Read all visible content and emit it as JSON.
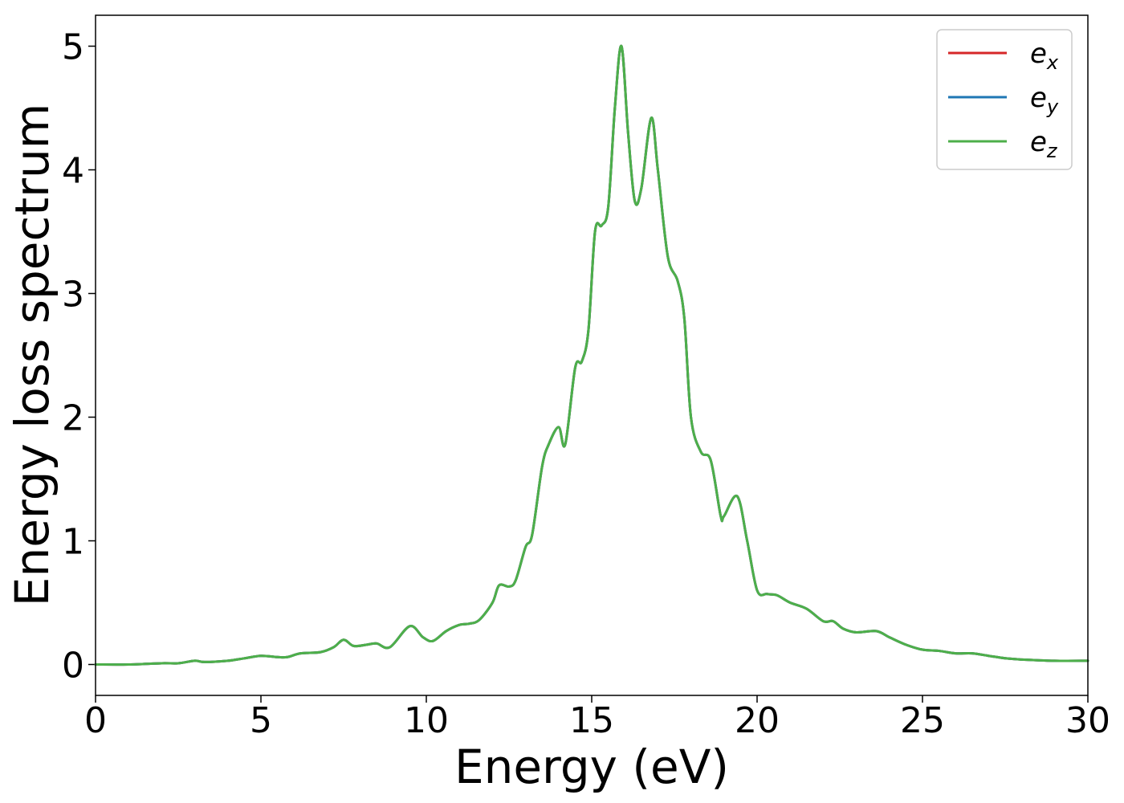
{
  "chart_data": {
    "type": "line",
    "title": "",
    "xlabel": "Energy (eV)",
    "ylabel": "Energy loss spectrum",
    "xlim": [
      0,
      30
    ],
    "ylim": [
      -0.25,
      5.25
    ],
    "xticks": [
      0,
      5,
      10,
      15,
      20,
      25,
      30
    ],
    "xtick_labels": [
      "0",
      "5",
      "10",
      "15",
      "20",
      "25",
      "30"
    ],
    "yticks": [
      0,
      1,
      2,
      3,
      4,
      5
    ],
    "ytick_labels": [
      "0",
      "1",
      "2",
      "3",
      "4",
      "5"
    ],
    "grid": false,
    "legend_position": "top-right",
    "x": [
      0,
      1,
      2,
      2.5,
      3,
      3.3,
      4,
      4.5,
      5,
      5.5,
      5.8,
      6.2,
      6.8,
      7.2,
      7.5,
      7.8,
      8.2,
      8.5,
      8.9,
      9.5,
      9.9,
      10.2,
      10.6,
      11,
      11.3,
      11.6,
      12,
      12.2,
      12.5,
      12.7,
      13,
      13.2,
      13.5,
      13.7,
      14,
      14.2,
      14.5,
      14.7,
      14.9,
      15.1,
      15.3,
      15.5,
      15.7,
      15.9,
      16.1,
      16.3,
      16.5,
      16.8,
      17,
      17.3,
      17.6,
      17.8,
      18,
      18.3,
      18.6,
      18.9,
      19,
      19.4,
      19.7,
      20,
      20.3,
      20.6,
      21,
      21.5,
      22,
      22.3,
      22.6,
      23,
      23.6,
      24,
      24.5,
      25,
      25.5,
      26,
      26.5,
      27,
      27.5,
      28,
      29,
      30
    ],
    "series": [
      {
        "name": "e_x",
        "label_base": "e",
        "label_sub": "x",
        "color": "#d62728",
        "values": [
          0,
          0,
          0.01,
          0.01,
          0.03,
          0.02,
          0.03,
          0.05,
          0.07,
          0.06,
          0.06,
          0.09,
          0.1,
          0.14,
          0.2,
          0.15,
          0.16,
          0.17,
          0.14,
          0.31,
          0.22,
          0.19,
          0.27,
          0.32,
          0.33,
          0.36,
          0.5,
          0.64,
          0.63,
          0.68,
          0.95,
          1.05,
          1.6,
          1.78,
          1.92,
          1.78,
          2.4,
          2.45,
          2.7,
          3.5,
          3.55,
          3.7,
          4.5,
          5.0,
          4.3,
          3.75,
          3.85,
          4.42,
          4.0,
          3.3,
          3.1,
          2.8,
          2.0,
          1.72,
          1.65,
          1.2,
          1.2,
          1.36,
          1.0,
          0.6,
          0.57,
          0.56,
          0.5,
          0.45,
          0.35,
          0.35,
          0.29,
          0.26,
          0.27,
          0.22,
          0.16,
          0.12,
          0.11,
          0.09,
          0.09,
          0.07,
          0.05,
          0.04,
          0.03,
          0.03
        ]
      },
      {
        "name": "e_y",
        "label_base": "e",
        "label_sub": "y",
        "color": "#1f77b4",
        "values": [
          0,
          0,
          0.01,
          0.01,
          0.03,
          0.02,
          0.03,
          0.05,
          0.07,
          0.06,
          0.06,
          0.09,
          0.1,
          0.14,
          0.2,
          0.15,
          0.16,
          0.17,
          0.14,
          0.31,
          0.22,
          0.19,
          0.27,
          0.32,
          0.33,
          0.36,
          0.5,
          0.64,
          0.63,
          0.68,
          0.95,
          1.05,
          1.6,
          1.78,
          1.92,
          1.78,
          2.4,
          2.45,
          2.7,
          3.5,
          3.55,
          3.7,
          4.5,
          5.0,
          4.3,
          3.75,
          3.85,
          4.42,
          4.0,
          3.3,
          3.1,
          2.8,
          2.0,
          1.72,
          1.65,
          1.2,
          1.2,
          1.36,
          1.0,
          0.6,
          0.57,
          0.56,
          0.5,
          0.45,
          0.35,
          0.35,
          0.29,
          0.26,
          0.27,
          0.22,
          0.16,
          0.12,
          0.11,
          0.09,
          0.09,
          0.07,
          0.05,
          0.04,
          0.03,
          0.03
        ]
      },
      {
        "name": "e_z",
        "label_base": "e",
        "label_sub": "z",
        "color": "#4daf4a",
        "values": [
          0,
          0,
          0.01,
          0.01,
          0.03,
          0.02,
          0.03,
          0.05,
          0.07,
          0.06,
          0.06,
          0.09,
          0.1,
          0.14,
          0.2,
          0.15,
          0.16,
          0.17,
          0.14,
          0.31,
          0.22,
          0.19,
          0.27,
          0.32,
          0.33,
          0.36,
          0.5,
          0.64,
          0.63,
          0.68,
          0.95,
          1.05,
          1.6,
          1.78,
          1.92,
          1.78,
          2.4,
          2.45,
          2.7,
          3.5,
          3.55,
          3.7,
          4.5,
          5.0,
          4.3,
          3.75,
          3.85,
          4.42,
          4.0,
          3.3,
          3.1,
          2.8,
          2.0,
          1.72,
          1.65,
          1.2,
          1.2,
          1.36,
          1.0,
          0.6,
          0.57,
          0.56,
          0.5,
          0.45,
          0.35,
          0.35,
          0.29,
          0.26,
          0.27,
          0.22,
          0.16,
          0.12,
          0.11,
          0.09,
          0.09,
          0.07,
          0.05,
          0.04,
          0.03,
          0.03
        ]
      }
    ]
  }
}
